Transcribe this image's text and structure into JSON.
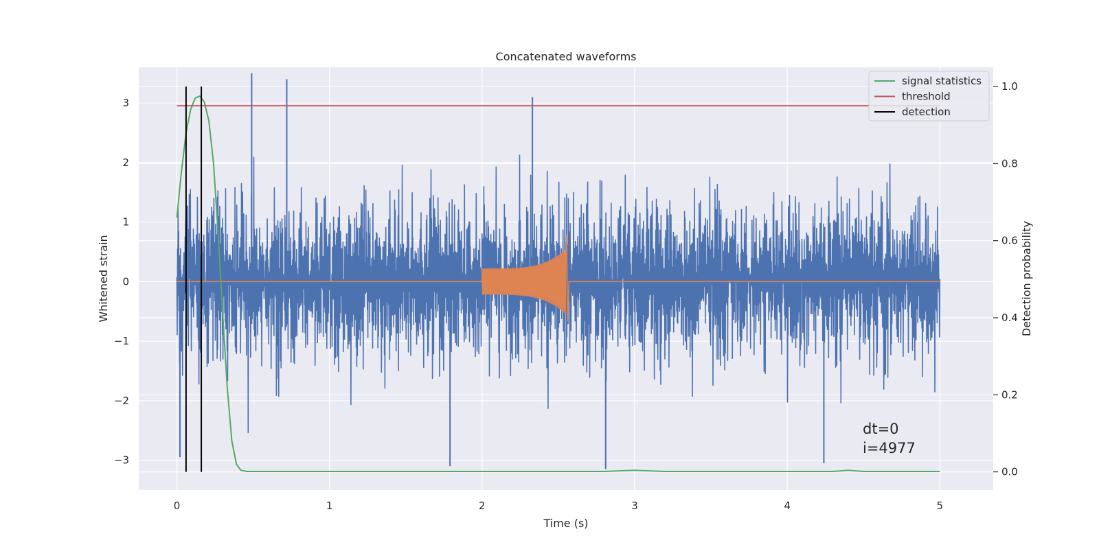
{
  "chart_data": {
    "type": "line",
    "title": "Concatenated waveforms",
    "xlabel": "Time (s)",
    "ylabel": "Whitened strain",
    "ylabel_right": "Detection probability",
    "xlim": [
      -0.25,
      5.35
    ],
    "ylim": [
      -3.5,
      3.6
    ],
    "ylim_right": [
      -0.047,
      1.05
    ],
    "x_ticks": [
      0,
      1,
      2,
      3,
      4,
      5
    ],
    "y_ticks": [
      -3,
      -2,
      -1,
      0,
      1,
      2,
      3
    ],
    "y_ticks_right": [
      0.0,
      0.2,
      0.4,
      0.6,
      0.8,
      1.0
    ],
    "x_tick_labels": [
      "0",
      "1",
      "2",
      "3",
      "4",
      "5"
    ],
    "y_tick_labels": [
      "−3",
      "−2",
      "−1",
      "0",
      "1",
      "2",
      "3"
    ],
    "y_tick_labels_right": [
      "0.0",
      "0.2",
      "0.4",
      "0.6",
      "0.8",
      "1.0"
    ],
    "grid": true,
    "legend_position": "top-right",
    "colors": {
      "background": "#eaeaf2",
      "grid": "#ffffff",
      "noise": "#4c72b0",
      "waveform": "#dd8452",
      "signal_statistics": "#55a868",
      "threshold": "#c44e52",
      "detection": "#000000"
    },
    "series": [
      {
        "name": "whitened strain (noise)",
        "axis": "left",
        "x_range": [
          0,
          5
        ],
        "amplitude_envelope": [
          -3.2,
          3.5
        ],
        "spikes": [
          {
            "x": 0.49,
            "y": 3.5
          },
          {
            "x": 0.72,
            "y": 3.4
          },
          {
            "x": 2.33,
            "y": 3.1
          },
          {
            "x": 2.81,
            "y": -3.15
          },
          {
            "x": 1.79,
            "y": -3.1
          },
          {
            "x": 4.24,
            "y": -3.05
          },
          {
            "x": 0.02,
            "y": -2.95
          }
        ]
      },
      {
        "name": "injected waveform",
        "axis": "left",
        "x_range": [
          0,
          5
        ],
        "chirp": {
          "start": 2.0,
          "end": 2.55,
          "amp_start": 0.22,
          "amp_peak": 0.8,
          "amp_min": -0.67
        }
      },
      {
        "name": "signal statistics",
        "axis": "right",
        "x": [
          0,
          0.03,
          0.06,
          0.09,
          0.12,
          0.15,
          0.18,
          0.21,
          0.24,
          0.27,
          0.3,
          0.33,
          0.36,
          0.39,
          0.42,
          0.46,
          0.6,
          1.0,
          2.0,
          2.8,
          3.0,
          3.2,
          4.0,
          4.3,
          4.4,
          4.5,
          5.0
        ],
        "values": [
          0.66,
          0.78,
          0.88,
          0.94,
          0.97,
          0.975,
          0.96,
          0.91,
          0.8,
          0.62,
          0.41,
          0.22,
          0.08,
          0.02,
          0.004,
          0.001,
          0.001,
          0.001,
          0.001,
          0.001,
          0.004,
          0.001,
          0.001,
          0.001,
          0.004,
          0.001,
          0.001
        ]
      },
      {
        "name": "threshold",
        "axis": "right",
        "x": [
          0,
          5
        ],
        "values": [
          0.95,
          0.95
        ]
      },
      {
        "name": "detection",
        "axis": "right",
        "x": [
          0.06,
          0.16
        ],
        "y_range": [
          0,
          1.0
        ]
      }
    ],
    "legend": [
      "signal statistics",
      "threshold",
      "detection"
    ],
    "annotations": [
      "dt=0",
      "i=4977"
    ]
  }
}
